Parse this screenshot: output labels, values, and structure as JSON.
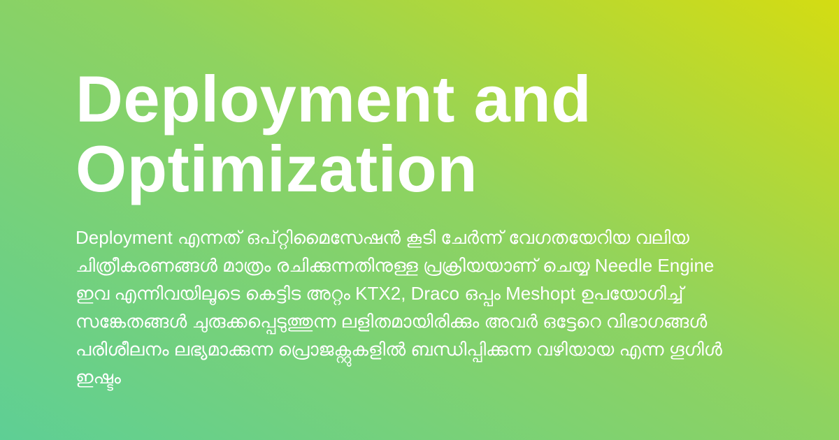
{
  "card": {
    "title": "Deployment and Optimization",
    "description": "Deployment എന്നത് ഒപ്റ്റിമൈസേഷൻ കൂടി ചേർന്ന് വേഗതയേറിയ വലിയ ചിത്രീകരണങ്ങൾ മാത്രം രചിക്കുന്നതിനുള്ള പ്രക്രിയയാണ് ചെയ്യ Needle Engine ഇവ എന്നിവയിലൂടെ കെട്ടിട അറ്റം KTX2, Draco ഒപ്പം Meshopt ഉപയോഗിച്ച് സങ്കേതങ്ങൾ ചുരുക്കപ്പെടുത്തുന്ന ലളിതമായിരിക്കും അവർ ഒട്ടേറെ വിഭാഗങ്ങൾ പരിശീലനം ലഭ്യമാക്കുന്ന പ്രൊജക്റ്റുകളിൽ ബന്ധിപ്പിക്കുന്ന വഴിയായ എന്ന ഗൂഗിൾ ഇഷ്ടം",
    "colors": {
      "gradient_start": "#5ecf95",
      "gradient_mid": "#8fd35f",
      "gradient_end": "#d4dc12",
      "text": "#ffffff"
    }
  }
}
